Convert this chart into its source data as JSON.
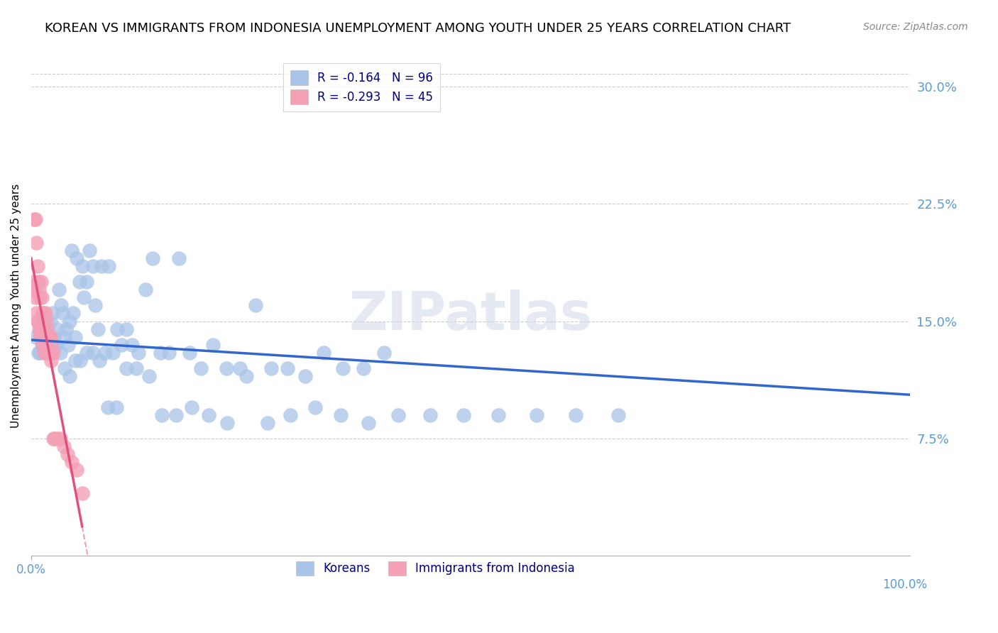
{
  "title": "KOREAN VS IMMIGRANTS FROM INDONESIA UNEMPLOYMENT AMONG YOUTH UNDER 25 YEARS CORRELATION CHART",
  "source": "Source: ZipAtlas.com",
  "ylabel": "Unemployment Among Youth under 25 years",
  "right_yticks": [
    "30.0%",
    "22.5%",
    "15.0%",
    "7.5%"
  ],
  "right_ytick_vals": [
    0.3,
    0.225,
    0.15,
    0.075
  ],
  "xlim": [
    0.0,
    1.0
  ],
  "ylim": [
    0.0,
    0.32
  ],
  "korean_R": -0.164,
  "korean_N": 96,
  "indonesia_R": -0.293,
  "indonesia_N": 45,
  "korean_color": "#a8c4e8",
  "korea_line_color": "#3366cc",
  "indonesia_color": "#f4a0b5",
  "indonesia_line_color": "#e05080",
  "watermark": "ZIPatlas",
  "title_fontsize": 13,
  "axis_label_color": "#5b9bd5",
  "grid_color": "#cccccc",
  "korean_x": [
    0.005,
    0.008,
    0.01,
    0.012,
    0.013,
    0.015,
    0.016,
    0.018,
    0.02,
    0.022,
    0.024,
    0.026,
    0.028,
    0.03,
    0.032,
    0.034,
    0.036,
    0.038,
    0.04,
    0.042,
    0.044,
    0.046,
    0.048,
    0.05,
    0.052,
    0.055,
    0.058,
    0.06,
    0.063,
    0.066,
    0.07,
    0.073,
    0.076,
    0.08,
    0.084,
    0.088,
    0.093,
    0.098,
    0.103,
    0.108,
    0.115,
    0.122,
    0.13,
    0.138,
    0.147,
    0.157,
    0.168,
    0.18,
    0.193,
    0.207,
    0.222,
    0.238,
    0.255,
    0.273,
    0.292,
    0.312,
    0.333,
    0.355,
    0.378,
    0.402,
    0.01,
    0.014,
    0.018,
    0.023,
    0.028,
    0.033,
    0.038,
    0.044,
    0.05,
    0.056,
    0.063,
    0.07,
    0.078,
    0.087,
    0.097,
    0.108,
    0.12,
    0.134,
    0.149,
    0.165,
    0.183,
    0.202,
    0.223,
    0.245,
    0.269,
    0.295,
    0.323,
    0.352,
    0.384,
    0.418,
    0.454,
    0.492,
    0.532,
    0.575,
    0.62,
    0.668
  ],
  "korean_y": [
    0.14,
    0.13,
    0.145,
    0.135,
    0.15,
    0.14,
    0.135,
    0.145,
    0.13,
    0.15,
    0.155,
    0.14,
    0.135,
    0.145,
    0.17,
    0.16,
    0.155,
    0.14,
    0.145,
    0.135,
    0.15,
    0.195,
    0.155,
    0.14,
    0.19,
    0.175,
    0.185,
    0.165,
    0.175,
    0.195,
    0.185,
    0.16,
    0.145,
    0.185,
    0.13,
    0.185,
    0.13,
    0.145,
    0.135,
    0.145,
    0.135,
    0.13,
    0.17,
    0.19,
    0.13,
    0.13,
    0.19,
    0.13,
    0.12,
    0.135,
    0.12,
    0.12,
    0.16,
    0.12,
    0.12,
    0.115,
    0.13,
    0.12,
    0.12,
    0.13,
    0.13,
    0.14,
    0.145,
    0.135,
    0.135,
    0.13,
    0.12,
    0.115,
    0.125,
    0.125,
    0.13,
    0.13,
    0.125,
    0.095,
    0.095,
    0.12,
    0.12,
    0.115,
    0.09,
    0.09,
    0.095,
    0.09,
    0.085,
    0.115,
    0.085,
    0.09,
    0.095,
    0.09,
    0.085,
    0.09,
    0.09,
    0.09,
    0.09,
    0.09,
    0.09,
    0.09
  ],
  "indonesia_x": [
    0.003,
    0.005,
    0.006,
    0.007,
    0.008,
    0.009,
    0.01,
    0.011,
    0.012,
    0.013,
    0.014,
    0.015,
    0.016,
    0.017,
    0.018,
    0.019,
    0.02,
    0.021,
    0.022,
    0.023,
    0.025,
    0.003,
    0.004,
    0.005,
    0.006,
    0.007,
    0.008,
    0.009,
    0.01,
    0.011,
    0.013,
    0.015,
    0.017,
    0.019,
    0.021,
    0.023,
    0.025,
    0.027,
    0.03,
    0.033,
    0.037,
    0.041,
    0.046,
    0.052,
    0.058
  ],
  "indonesia_y": [
    0.215,
    0.215,
    0.2,
    0.185,
    0.175,
    0.17,
    0.165,
    0.175,
    0.165,
    0.155,
    0.155,
    0.145,
    0.155,
    0.15,
    0.145,
    0.14,
    0.14,
    0.14,
    0.14,
    0.135,
    0.13,
    0.175,
    0.17,
    0.165,
    0.155,
    0.15,
    0.15,
    0.145,
    0.14,
    0.14,
    0.135,
    0.13,
    0.13,
    0.13,
    0.13,
    0.125,
    0.075,
    0.075,
    0.075,
    0.075,
    0.07,
    0.065,
    0.06,
    0.055,
    0.04
  ]
}
